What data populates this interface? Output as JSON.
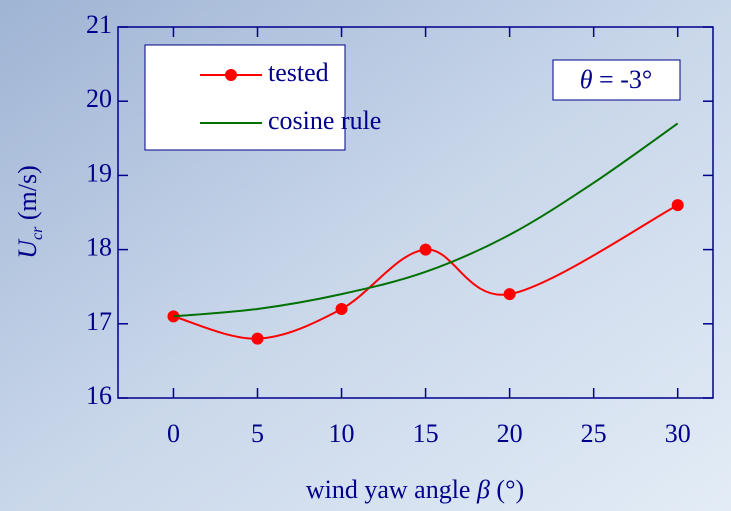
{
  "chart_data": {
    "type": "line",
    "x_label": {
      "text": "wind yaw angle",
      "symbol": "β",
      "unit": "(°)"
    },
    "y_label": {
      "symbol": "U",
      "subscript": "cr",
      "unit": "(m/s)"
    },
    "annotation": {
      "symbol": "θ",
      "text": "= -3°"
    },
    "series": [
      {
        "name": "tested",
        "color": "#ff0000",
        "markers": true,
        "x": [
          0,
          5,
          10,
          15,
          20,
          30
        ],
        "values": [
          17.1,
          16.8,
          17.2,
          18.0,
          17.4,
          18.6
        ]
      },
      {
        "name": "cosine rule",
        "color": "#007000",
        "markers": false,
        "x": [
          0,
          5,
          10,
          15,
          20,
          25,
          30
        ],
        "values": [
          17.1,
          17.2,
          17.4,
          17.7,
          18.2,
          18.9,
          19.7
        ]
      }
    ],
    "xlim": [
      -3.3,
      32.1
    ],
    "xticks": [
      0,
      5,
      10,
      15,
      20,
      25,
      30
    ],
    "ylim": [
      16,
      21
    ],
    "yticks": [
      16,
      17,
      18,
      19,
      20,
      21
    ],
    "legend": "upper left"
  }
}
